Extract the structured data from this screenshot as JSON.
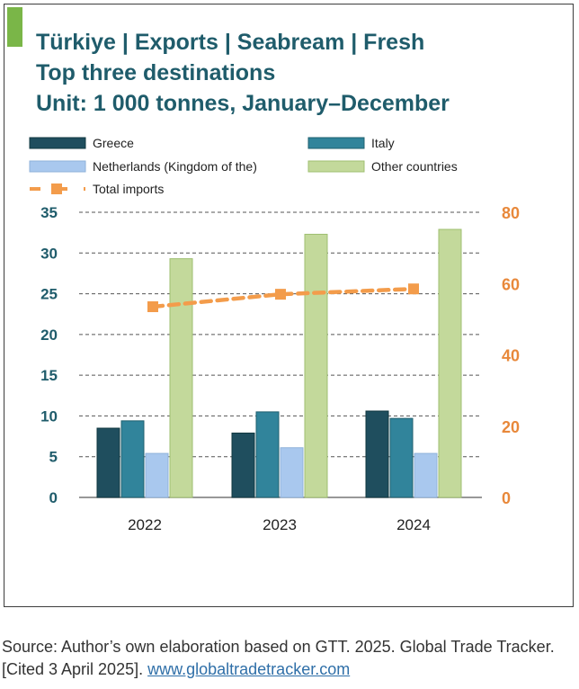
{
  "title_lines": [
    "Türkiye | Exports | Seabream | Fresh",
    "Top three destinations",
    "Unit: 1 000 tonnes, January–December"
  ],
  "source": {
    "text": "Source: Author’s own elaboration based on GTT. 2025. Global Trade Tracker. [Cited 3 April 2025]. ",
    "link_text": "www.globaltradetracker.com"
  },
  "colors": {
    "title": "#1f5c6b",
    "accent": "#7ab648",
    "greece": "#1f4e5e",
    "italy": "#31849b",
    "netherlands": "#a9c8ee",
    "other": "#c3d99b",
    "total": "#f39c4b",
    "left_axis": "#1f5c6b",
    "right_axis": "#e8883a"
  },
  "chart_data": {
    "type": "bar",
    "categories": [
      "2022",
      "2023",
      "2024"
    ],
    "series": [
      {
        "name": "Greece",
        "axis": "left",
        "values": [
          8.5,
          7.9,
          10.6
        ]
      },
      {
        "name": "Italy",
        "axis": "left",
        "values": [
          9.4,
          10.5,
          9.7
        ]
      },
      {
        "name": "Netherlands (Kingdom of the)",
        "axis": "left",
        "values": [
          5.4,
          6.1,
          5.4
        ]
      },
      {
        "name": "Other countries",
        "axis": "left",
        "values": [
          29.3,
          32.3,
          32.9
        ]
      },
      {
        "name": "Total imports",
        "axis": "right",
        "type": "line",
        "values": [
          53.5,
          57.0,
          58.5
        ]
      }
    ],
    "y_left": {
      "range": [
        0,
        35
      ],
      "ticks": [
        "0",
        "5",
        "10",
        "15",
        "20",
        "25",
        "30",
        "35"
      ]
    },
    "y_right": {
      "range": [
        0,
        80
      ],
      "ticks": [
        "0",
        "20",
        "40",
        "60",
        "80"
      ]
    },
    "grid": true,
    "legend_position": "top"
  }
}
